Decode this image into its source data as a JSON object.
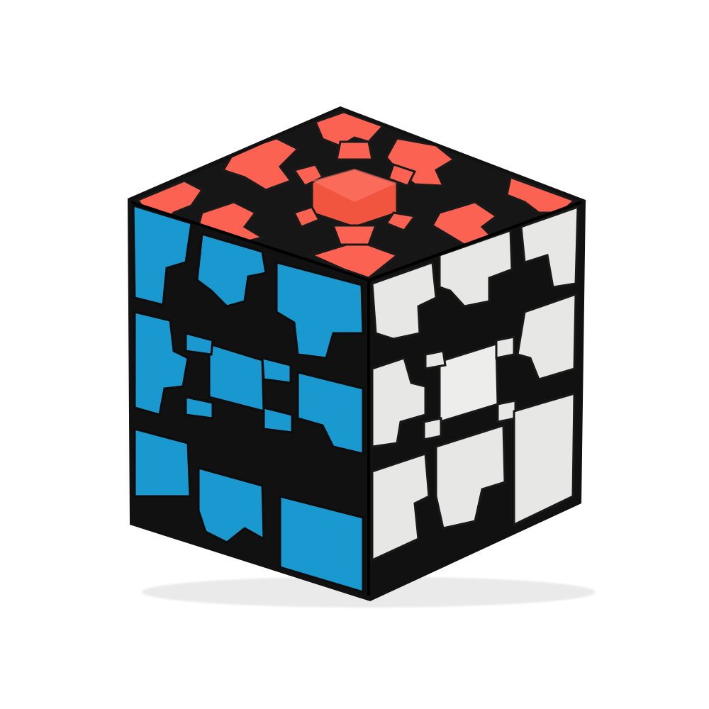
{
  "image": {
    "subject": "gear-cube",
    "background_color": "#ffffff",
    "colors": {
      "top_face": "#fb6252",
      "top_face_shadow": "#d94a3d",
      "left_face": "#1ba0d8",
      "left_face_shadow": "#137fb0",
      "right_face": "#efefed",
      "right_face_shadow": "#c9c9c6",
      "body_plastic": "#111111"
    }
  }
}
